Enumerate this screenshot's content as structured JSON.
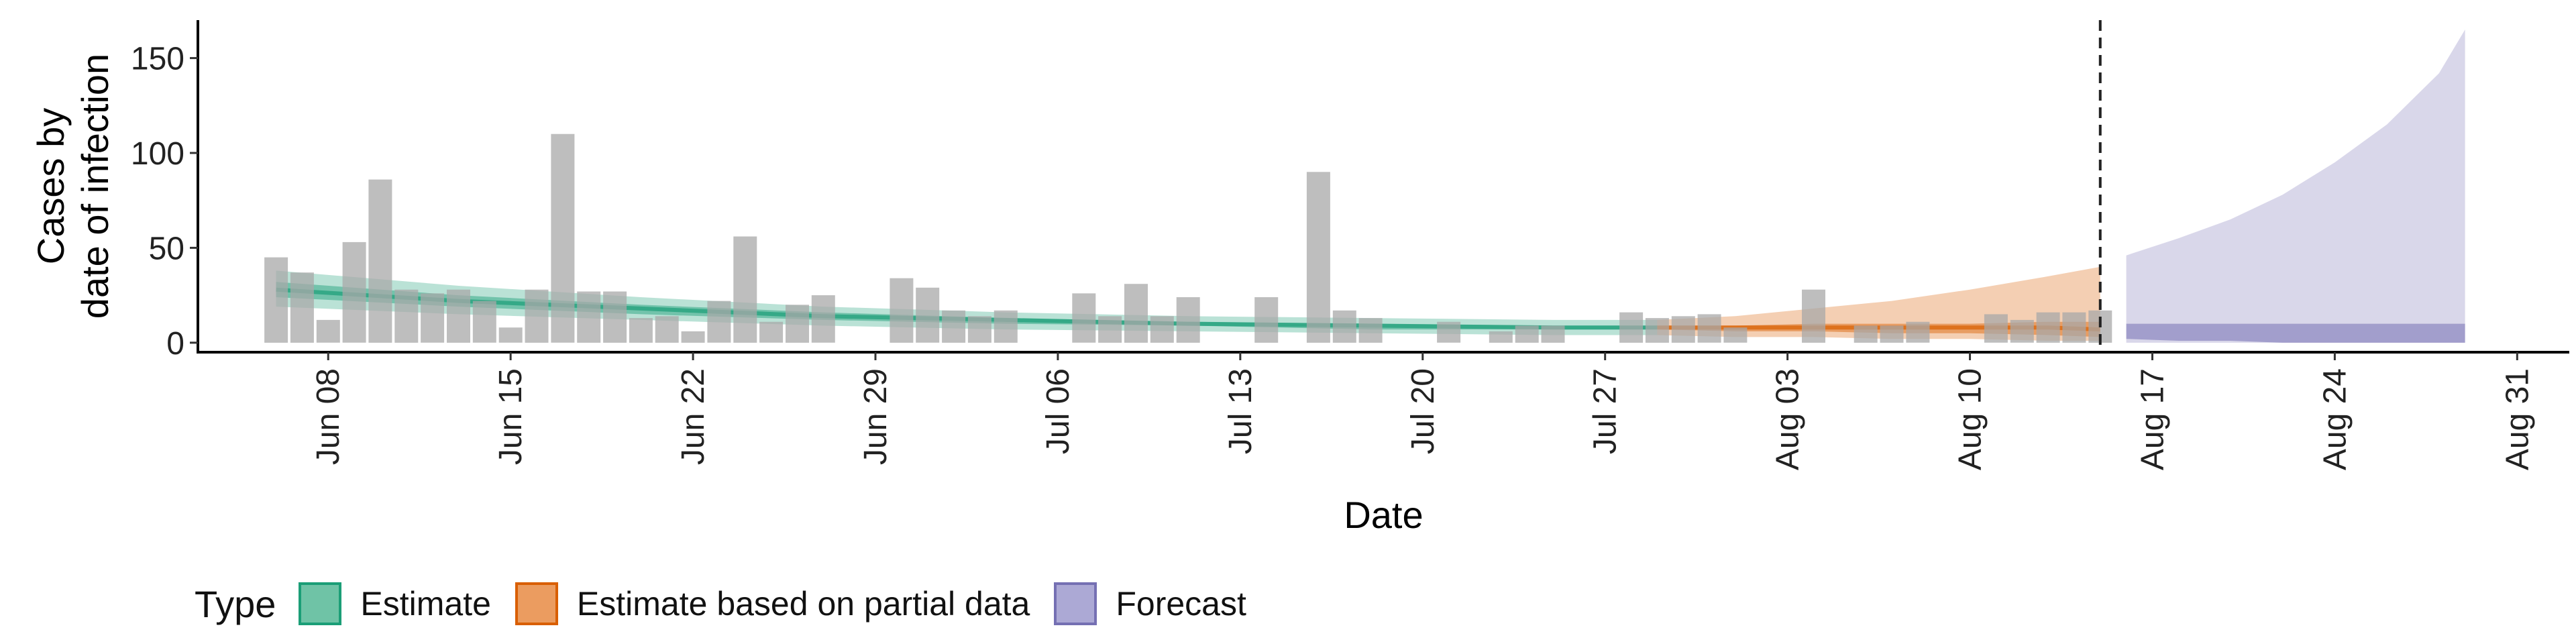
{
  "chart_data": {
    "type": "bar",
    "xlabel": "Date",
    "ylabel_lines": [
      "Cases by",
      "date of infection"
    ],
    "ylim": [
      -5,
      170
    ],
    "y_ticks": [
      0,
      50,
      100,
      150
    ],
    "x_range": [
      "2020-06-03",
      "2020-09-02"
    ],
    "x_ticks": [
      {
        "date": "2020-06-08",
        "label": "Jun 08"
      },
      {
        "date": "2020-06-15",
        "label": "Jun 15"
      },
      {
        "date": "2020-06-22",
        "label": "Jun 22"
      },
      {
        "date": "2020-06-29",
        "label": "Jun 29"
      },
      {
        "date": "2020-07-06",
        "label": "Jul 06"
      },
      {
        "date": "2020-07-13",
        "label": "Jul 13"
      },
      {
        "date": "2020-07-20",
        "label": "Jul 20"
      },
      {
        "date": "2020-07-27",
        "label": "Jul 27"
      },
      {
        "date": "2020-08-03",
        "label": "Aug 03"
      },
      {
        "date": "2020-08-10",
        "label": "Aug 10"
      },
      {
        "date": "2020-08-17",
        "label": "Aug 17"
      },
      {
        "date": "2020-08-24",
        "label": "Aug 24"
      },
      {
        "date": "2020-08-31",
        "label": "Aug 31"
      }
    ],
    "forecast_cutoff": "2020-08-15",
    "reported_cases": {
      "start_date": "2020-06-06",
      "values": [
        45,
        37,
        12,
        53,
        86,
        28,
        26,
        28,
        22,
        8,
        28,
        110,
        27,
        27,
        13,
        14,
        6,
        22,
        56,
        11,
        20,
        25,
        0,
        0,
        34,
        29,
        17,
        14,
        17,
        0,
        0,
        26,
        14,
        31,
        14,
        24,
        0,
        0,
        24,
        0,
        90,
        17,
        13,
        0,
        0,
        11,
        0,
        6,
        9,
        9,
        0,
        0,
        16,
        13,
        14,
        15,
        8,
        0,
        0,
        28,
        0,
        9,
        9,
        11,
        0,
        0,
        15,
        12,
        16,
        16,
        17
      ]
    },
    "series": [
      {
        "name": "Estimate",
        "color": "#1b9e77",
        "x": [
          "2020-06-06",
          "2020-06-13",
          "2020-06-20",
          "2020-06-27",
          "2020-07-04",
          "2020-07-11",
          "2020-07-18",
          "2020-07-25",
          "2020-07-29"
        ],
        "median": [
          28,
          22,
          18,
          14,
          12,
          10,
          9,
          8,
          8
        ],
        "lower_50": [
          24,
          19,
          15,
          12,
          10,
          9,
          7,
          7,
          7
        ],
        "upper_50": [
          32,
          25,
          20,
          16,
          13,
          11,
          10,
          9,
          9
        ],
        "lower_90": [
          19,
          15,
          12,
          9,
          7,
          6,
          5,
          4,
          4
        ],
        "upper_90": [
          38,
          30,
          24,
          19,
          16,
          14,
          13,
          12,
          12
        ]
      },
      {
        "name": "Estimate based on partial data",
        "color": "#d95f02",
        "x": [
          "2020-07-29",
          "2020-08-01",
          "2020-08-04",
          "2020-08-07",
          "2020-08-10",
          "2020-08-13",
          "2020-08-15"
        ],
        "median": [
          8,
          8,
          8,
          8,
          8,
          8,
          7
        ],
        "lower_50": [
          7,
          6,
          6,
          5,
          5,
          4,
          3
        ],
        "upper_50": [
          9,
          9,
          10,
          10,
          10,
          11,
          11
        ],
        "lower_90": [
          4,
          3,
          3,
          2,
          2,
          1,
          1
        ],
        "upper_90": [
          12,
          14,
          18,
          22,
          28,
          35,
          40
        ]
      },
      {
        "name": "Forecast",
        "color": "#7570b3",
        "x": [
          "2020-08-16",
          "2020-08-18",
          "2020-08-20",
          "2020-08-22",
          "2020-08-24",
          "2020-08-26",
          "2020-08-28",
          "2020-08-29"
        ],
        "lower_50": [
          2,
          1,
          1,
          0,
          0,
          0,
          0,
          0
        ],
        "upper_50": [
          10,
          10,
          10,
          10,
          10,
          10,
          10,
          10
        ],
        "lower_90": [
          0,
          0,
          0,
          0,
          0,
          0,
          0,
          0
        ],
        "upper_90": [
          46,
          55,
          65,
          78,
          95,
          115,
          142,
          165
        ]
      }
    ],
    "legend": {
      "title": "Type",
      "position": "bottom-left",
      "items": [
        {
          "label": "Estimate",
          "fill": "#6fc3a6",
          "border": "#1b9e77"
        },
        {
          "label": "Estimate based on partial data",
          "fill": "#eb9c60",
          "border": "#d95f02"
        },
        {
          "label": "Forecast",
          "fill": "#aca9d5",
          "border": "#7570b3"
        }
      ]
    }
  }
}
